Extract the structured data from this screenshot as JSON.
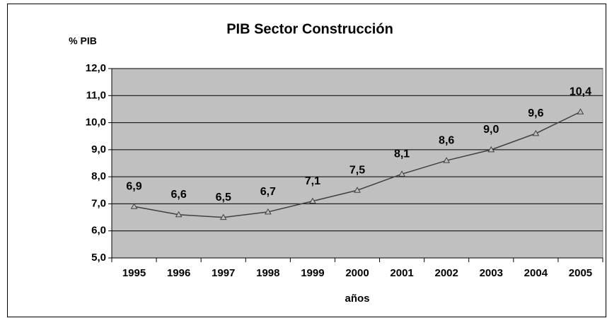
{
  "chart_data": {
    "type": "line",
    "title": "PIB Sector Construcción",
    "y_label": "% PIB",
    "x_label": "años",
    "categories": [
      "1995",
      "1996",
      "1997",
      "1998",
      "1999",
      "2000",
      "2001",
      "2002",
      "2003",
      "2004",
      "2005"
    ],
    "series": [
      {
        "name": "PIB Sector Construcción",
        "color": "#404040",
        "values": [
          6.9,
          6.6,
          6.5,
          6.7,
          7.1,
          7.5,
          8.1,
          8.6,
          9.0,
          9.6,
          10.4
        ],
        "value_labels": [
          "6,9",
          "6,6",
          "6,5",
          "6,7",
          "7,1",
          "7,5",
          "8,1",
          "8,6",
          "9,0",
          "9,6",
          "10,4"
        ]
      }
    ],
    "ylim": [
      5,
      12
    ],
    "yticks": [
      {
        "value": 5,
        "label": "5,0"
      },
      {
        "value": 6,
        "label": "6,0"
      },
      {
        "value": 7,
        "label": "7,0"
      },
      {
        "value": 8,
        "label": "8,0"
      },
      {
        "value": 9,
        "label": "9,0"
      },
      {
        "value": 10,
        "label": "10,0"
      },
      {
        "value": 11,
        "label": "11,0"
      },
      {
        "value": 12,
        "label": "12,0"
      }
    ],
    "grid": true,
    "plot_background": "#c0c0c0"
  }
}
